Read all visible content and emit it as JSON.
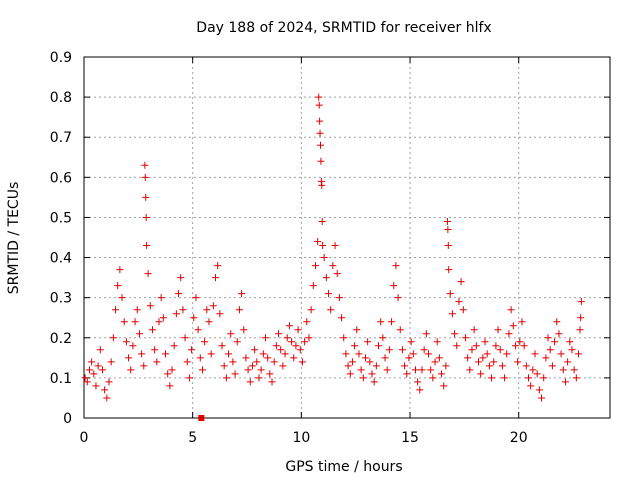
{
  "chart_data": {
    "type": "scatter",
    "title": "Day 188 of 2024, SRMTID for receiver hlfx",
    "xlabel": "GPS time / hours",
    "ylabel": "SRMTID / TECUs",
    "xlim": [
      0,
      24.2
    ],
    "ylim": [
      0,
      0.9
    ],
    "xticks": [
      0,
      5,
      10,
      15,
      20
    ],
    "xtick_labels": [
      "0",
      "5",
      "10",
      "15",
      "20"
    ],
    "yticks": [
      0,
      0.1,
      0.2,
      0.3,
      0.4,
      0.5,
      0.6,
      0.7,
      0.8,
      0.9
    ],
    "ytick_labels": [
      "0",
      "0.1",
      "0.2",
      "0.3",
      "0.4",
      "0.5",
      "0.6",
      "0.7",
      "0.8",
      "0.9"
    ],
    "grid": true,
    "series_color": "#e00000",
    "marker": "plus",
    "series": [
      {
        "name": "SRMTID",
        "points": [
          [
            0.05,
            0.1
          ],
          [
            0.15,
            0.09
          ],
          [
            0.25,
            0.12
          ],
          [
            0.35,
            0.14
          ],
          [
            0.45,
            0.11
          ],
          [
            0.55,
            0.08
          ],
          [
            0.65,
            0.13
          ],
          [
            0.75,
            0.17
          ],
          [
            0.85,
            0.12
          ],
          [
            0.95,
            0.07
          ],
          [
            1.05,
            0.05
          ],
          [
            1.15,
            0.09
          ],
          [
            1.25,
            0.14
          ],
          [
            1.35,
            0.2
          ],
          [
            1.45,
            0.27
          ],
          [
            1.55,
            0.33
          ],
          [
            1.65,
            0.37
          ],
          [
            1.75,
            0.3
          ],
          [
            1.85,
            0.24
          ],
          [
            1.95,
            0.19
          ],
          [
            2.05,
            0.15
          ],
          [
            2.15,
            0.12
          ],
          [
            2.25,
            0.18
          ],
          [
            2.35,
            0.24
          ],
          [
            2.45,
            0.27
          ],
          [
            2.55,
            0.21
          ],
          [
            2.65,
            0.16
          ],
          [
            2.75,
            0.13
          ],
          [
            2.8,
            0.63
          ],
          [
            2.82,
            0.6
          ],
          [
            2.84,
            0.55
          ],
          [
            2.86,
            0.5
          ],
          [
            2.88,
            0.43
          ],
          [
            2.95,
            0.36
          ],
          [
            3.05,
            0.28
          ],
          [
            3.15,
            0.22
          ],
          [
            3.25,
            0.17
          ],
          [
            3.35,
            0.14
          ],
          [
            3.45,
            0.24
          ],
          [
            3.55,
            0.3
          ],
          [
            3.65,
            0.25
          ],
          [
            3.75,
            0.16
          ],
          [
            3.85,
            0.11
          ],
          [
            3.95,
            0.08
          ],
          [
            4.05,
            0.12
          ],
          [
            4.15,
            0.18
          ],
          [
            4.25,
            0.26
          ],
          [
            4.35,
            0.31
          ],
          [
            4.45,
            0.35
          ],
          [
            4.55,
            0.27
          ],
          [
            4.65,
            0.2
          ],
          [
            4.75,
            0.14
          ],
          [
            4.85,
            0.1
          ],
          [
            4.95,
            0.17
          ],
          [
            5.05,
            0.25
          ],
          [
            5.15,
            0.3
          ],
          [
            5.25,
            0.22
          ],
          [
            5.35,
            0.15
          ],
          [
            5.45,
            0.12
          ],
          [
            5.55,
            0.19
          ],
          [
            5.65,
            0.27
          ],
          [
            5.75,
            0.24
          ],
          [
            5.85,
            0.16
          ],
          [
            5.95,
            0.28
          ],
          [
            6.05,
            0.35
          ],
          [
            6.15,
            0.38
          ],
          [
            6.25,
            0.26
          ],
          [
            6.35,
            0.18
          ],
          [
            6.45,
            0.13
          ],
          [
            6.55,
            0.1
          ],
          [
            6.65,
            0.16
          ],
          [
            6.75,
            0.21
          ],
          [
            6.85,
            0.14
          ],
          [
            6.95,
            0.11
          ],
          [
            7.05,
            0.19
          ],
          [
            7.15,
            0.27
          ],
          [
            7.25,
            0.31
          ],
          [
            7.35,
            0.22
          ],
          [
            7.45,
            0.15
          ],
          [
            7.55,
            0.12
          ],
          [
            7.65,
            0.09
          ],
          [
            7.75,
            0.13
          ],
          [
            7.85,
            0.17
          ],
          [
            7.95,
            0.14
          ],
          [
            8.05,
            0.1
          ],
          [
            8.15,
            0.12
          ],
          [
            8.25,
            0.16
          ],
          [
            8.35,
            0.2
          ],
          [
            8.45,
            0.15
          ],
          [
            8.55,
            0.11
          ],
          [
            8.65,
            0.09
          ],
          [
            8.75,
            0.14
          ],
          [
            8.85,
            0.18
          ],
          [
            8.95,
            0.21
          ],
          [
            9.05,
            0.17
          ],
          [
            9.15,
            0.13
          ],
          [
            9.25,
            0.16
          ],
          [
            9.35,
            0.2
          ],
          [
            9.45,
            0.23
          ],
          [
            9.55,
            0.19
          ],
          [
            9.65,
            0.15
          ],
          [
            9.75,
            0.18
          ],
          [
            9.85,
            0.22
          ],
          [
            9.95,
            0.17
          ],
          [
            10.05,
            0.14
          ],
          [
            10.15,
            0.19
          ],
          [
            10.25,
            0.24
          ],
          [
            10.35,
            0.2
          ],
          [
            10.45,
            0.27
          ],
          [
            10.55,
            0.33
          ],
          [
            10.65,
            0.38
          ],
          [
            10.75,
            0.44
          ],
          [
            10.8,
            0.8
          ],
          [
            10.82,
            0.78
          ],
          [
            10.84,
            0.74
          ],
          [
            10.86,
            0.71
          ],
          [
            10.88,
            0.68
          ],
          [
            10.9,
            0.64
          ],
          [
            10.92,
            0.59
          ],
          [
            10.94,
            0.58
          ],
          [
            10.96,
            0.49
          ],
          [
            10.98,
            0.43
          ],
          [
            11.05,
            0.4
          ],
          [
            11.15,
            0.35
          ],
          [
            11.25,
            0.31
          ],
          [
            11.35,
            0.27
          ],
          [
            11.45,
            0.38
          ],
          [
            11.55,
            0.43
          ],
          [
            11.65,
            0.36
          ],
          [
            11.75,
            0.3
          ],
          [
            11.85,
            0.25
          ],
          [
            11.95,
            0.2
          ],
          [
            12.05,
            0.16
          ],
          [
            12.15,
            0.13
          ],
          [
            12.25,
            0.11
          ],
          [
            12.35,
            0.14
          ],
          [
            12.45,
            0.18
          ],
          [
            12.55,
            0.22
          ],
          [
            12.65,
            0.16
          ],
          [
            12.75,
            0.12
          ],
          [
            12.85,
            0.1
          ],
          [
            12.95,
            0.15
          ],
          [
            13.05,
            0.19
          ],
          [
            13.15,
            0.14
          ],
          [
            13.25,
            0.11
          ],
          [
            13.35,
            0.09
          ],
          [
            13.45,
            0.13
          ],
          [
            13.55,
            0.18
          ],
          [
            13.65,
            0.24
          ],
          [
            13.75,
            0.2
          ],
          [
            13.85,
            0.15
          ],
          [
            13.95,
            0.12
          ],
          [
            14.05,
            0.17
          ],
          [
            14.15,
            0.24
          ],
          [
            14.25,
            0.33
          ],
          [
            14.35,
            0.38
          ],
          [
            14.45,
            0.3
          ],
          [
            14.55,
            0.22
          ],
          [
            14.65,
            0.17
          ],
          [
            14.75,
            0.13
          ],
          [
            14.85,
            0.11
          ],
          [
            14.95,
            0.15
          ],
          [
            15.05,
            0.19
          ],
          [
            15.15,
            0.16
          ],
          [
            15.25,
            0.12
          ],
          [
            15.35,
            0.09
          ],
          [
            15.45,
            0.07
          ],
          [
            15.55,
            0.12
          ],
          [
            15.65,
            0.17
          ],
          [
            15.75,
            0.21
          ],
          [
            15.85,
            0.16
          ],
          [
            15.95,
            0.12
          ],
          [
            16.05,
            0.1
          ],
          [
            16.15,
            0.14
          ],
          [
            16.25,
            0.19
          ],
          [
            16.35,
            0.15
          ],
          [
            16.45,
            0.11
          ],
          [
            16.55,
            0.08
          ],
          [
            16.65,
            0.13
          ],
          [
            16.72,
            0.49
          ],
          [
            16.74,
            0.47
          ],
          [
            16.76,
            0.43
          ],
          [
            16.78,
            0.37
          ],
          [
            16.85,
            0.31
          ],
          [
            16.95,
            0.26
          ],
          [
            17.05,
            0.21
          ],
          [
            17.15,
            0.18
          ],
          [
            17.25,
            0.29
          ],
          [
            17.35,
            0.34
          ],
          [
            17.45,
            0.27
          ],
          [
            17.55,
            0.2
          ],
          [
            17.65,
            0.15
          ],
          [
            17.75,
            0.12
          ],
          [
            17.85,
            0.17
          ],
          [
            17.95,
            0.22
          ],
          [
            18.05,
            0.18
          ],
          [
            18.15,
            0.14
          ],
          [
            18.25,
            0.11
          ],
          [
            18.35,
            0.15
          ],
          [
            18.45,
            0.19
          ],
          [
            18.55,
            0.16
          ],
          [
            18.65,
            0.13
          ],
          [
            18.75,
            0.1
          ],
          [
            18.85,
            0.14
          ],
          [
            18.95,
            0.18
          ],
          [
            19.05,
            0.22
          ],
          [
            19.15,
            0.17
          ],
          [
            19.25,
            0.13
          ],
          [
            19.35,
            0.1
          ],
          [
            19.45,
            0.16
          ],
          [
            19.55,
            0.21
          ],
          [
            19.65,
            0.27
          ],
          [
            19.75,
            0.23
          ],
          [
            19.85,
            0.18
          ],
          [
            19.95,
            0.14
          ],
          [
            20.05,
            0.19
          ],
          [
            20.15,
            0.24
          ],
          [
            20.25,
            0.18
          ],
          [
            20.35,
            0.13
          ],
          [
            20.45,
            0.1
          ],
          [
            20.55,
            0.08
          ],
          [
            20.65,
            0.12
          ],
          [
            20.75,
            0.16
          ],
          [
            20.85,
            0.11
          ],
          [
            20.95,
            0.07
          ],
          [
            21.05,
            0.05
          ],
          [
            21.15,
            0.1
          ],
          [
            21.25,
            0.15
          ],
          [
            21.35,
            0.2
          ],
          [
            21.45,
            0.17
          ],
          [
            21.55,
            0.13
          ],
          [
            21.65,
            0.19
          ],
          [
            21.75,
            0.24
          ],
          [
            21.85,
            0.21
          ],
          [
            21.95,
            0.16
          ],
          [
            22.05,
            0.12
          ],
          [
            22.15,
            0.09
          ],
          [
            22.25,
            0.14
          ],
          [
            22.35,
            0.19
          ],
          [
            22.45,
            0.17
          ],
          [
            22.55,
            0.12
          ],
          [
            22.65,
            0.1
          ],
          [
            22.75,
            0.16
          ],
          [
            22.82,
            0.22
          ],
          [
            22.85,
            0.25
          ],
          [
            22.88,
            0.29
          ]
        ]
      }
    ],
    "outlier_marker": {
      "x": 5.4,
      "y": 0.0,
      "shape": "square"
    }
  }
}
